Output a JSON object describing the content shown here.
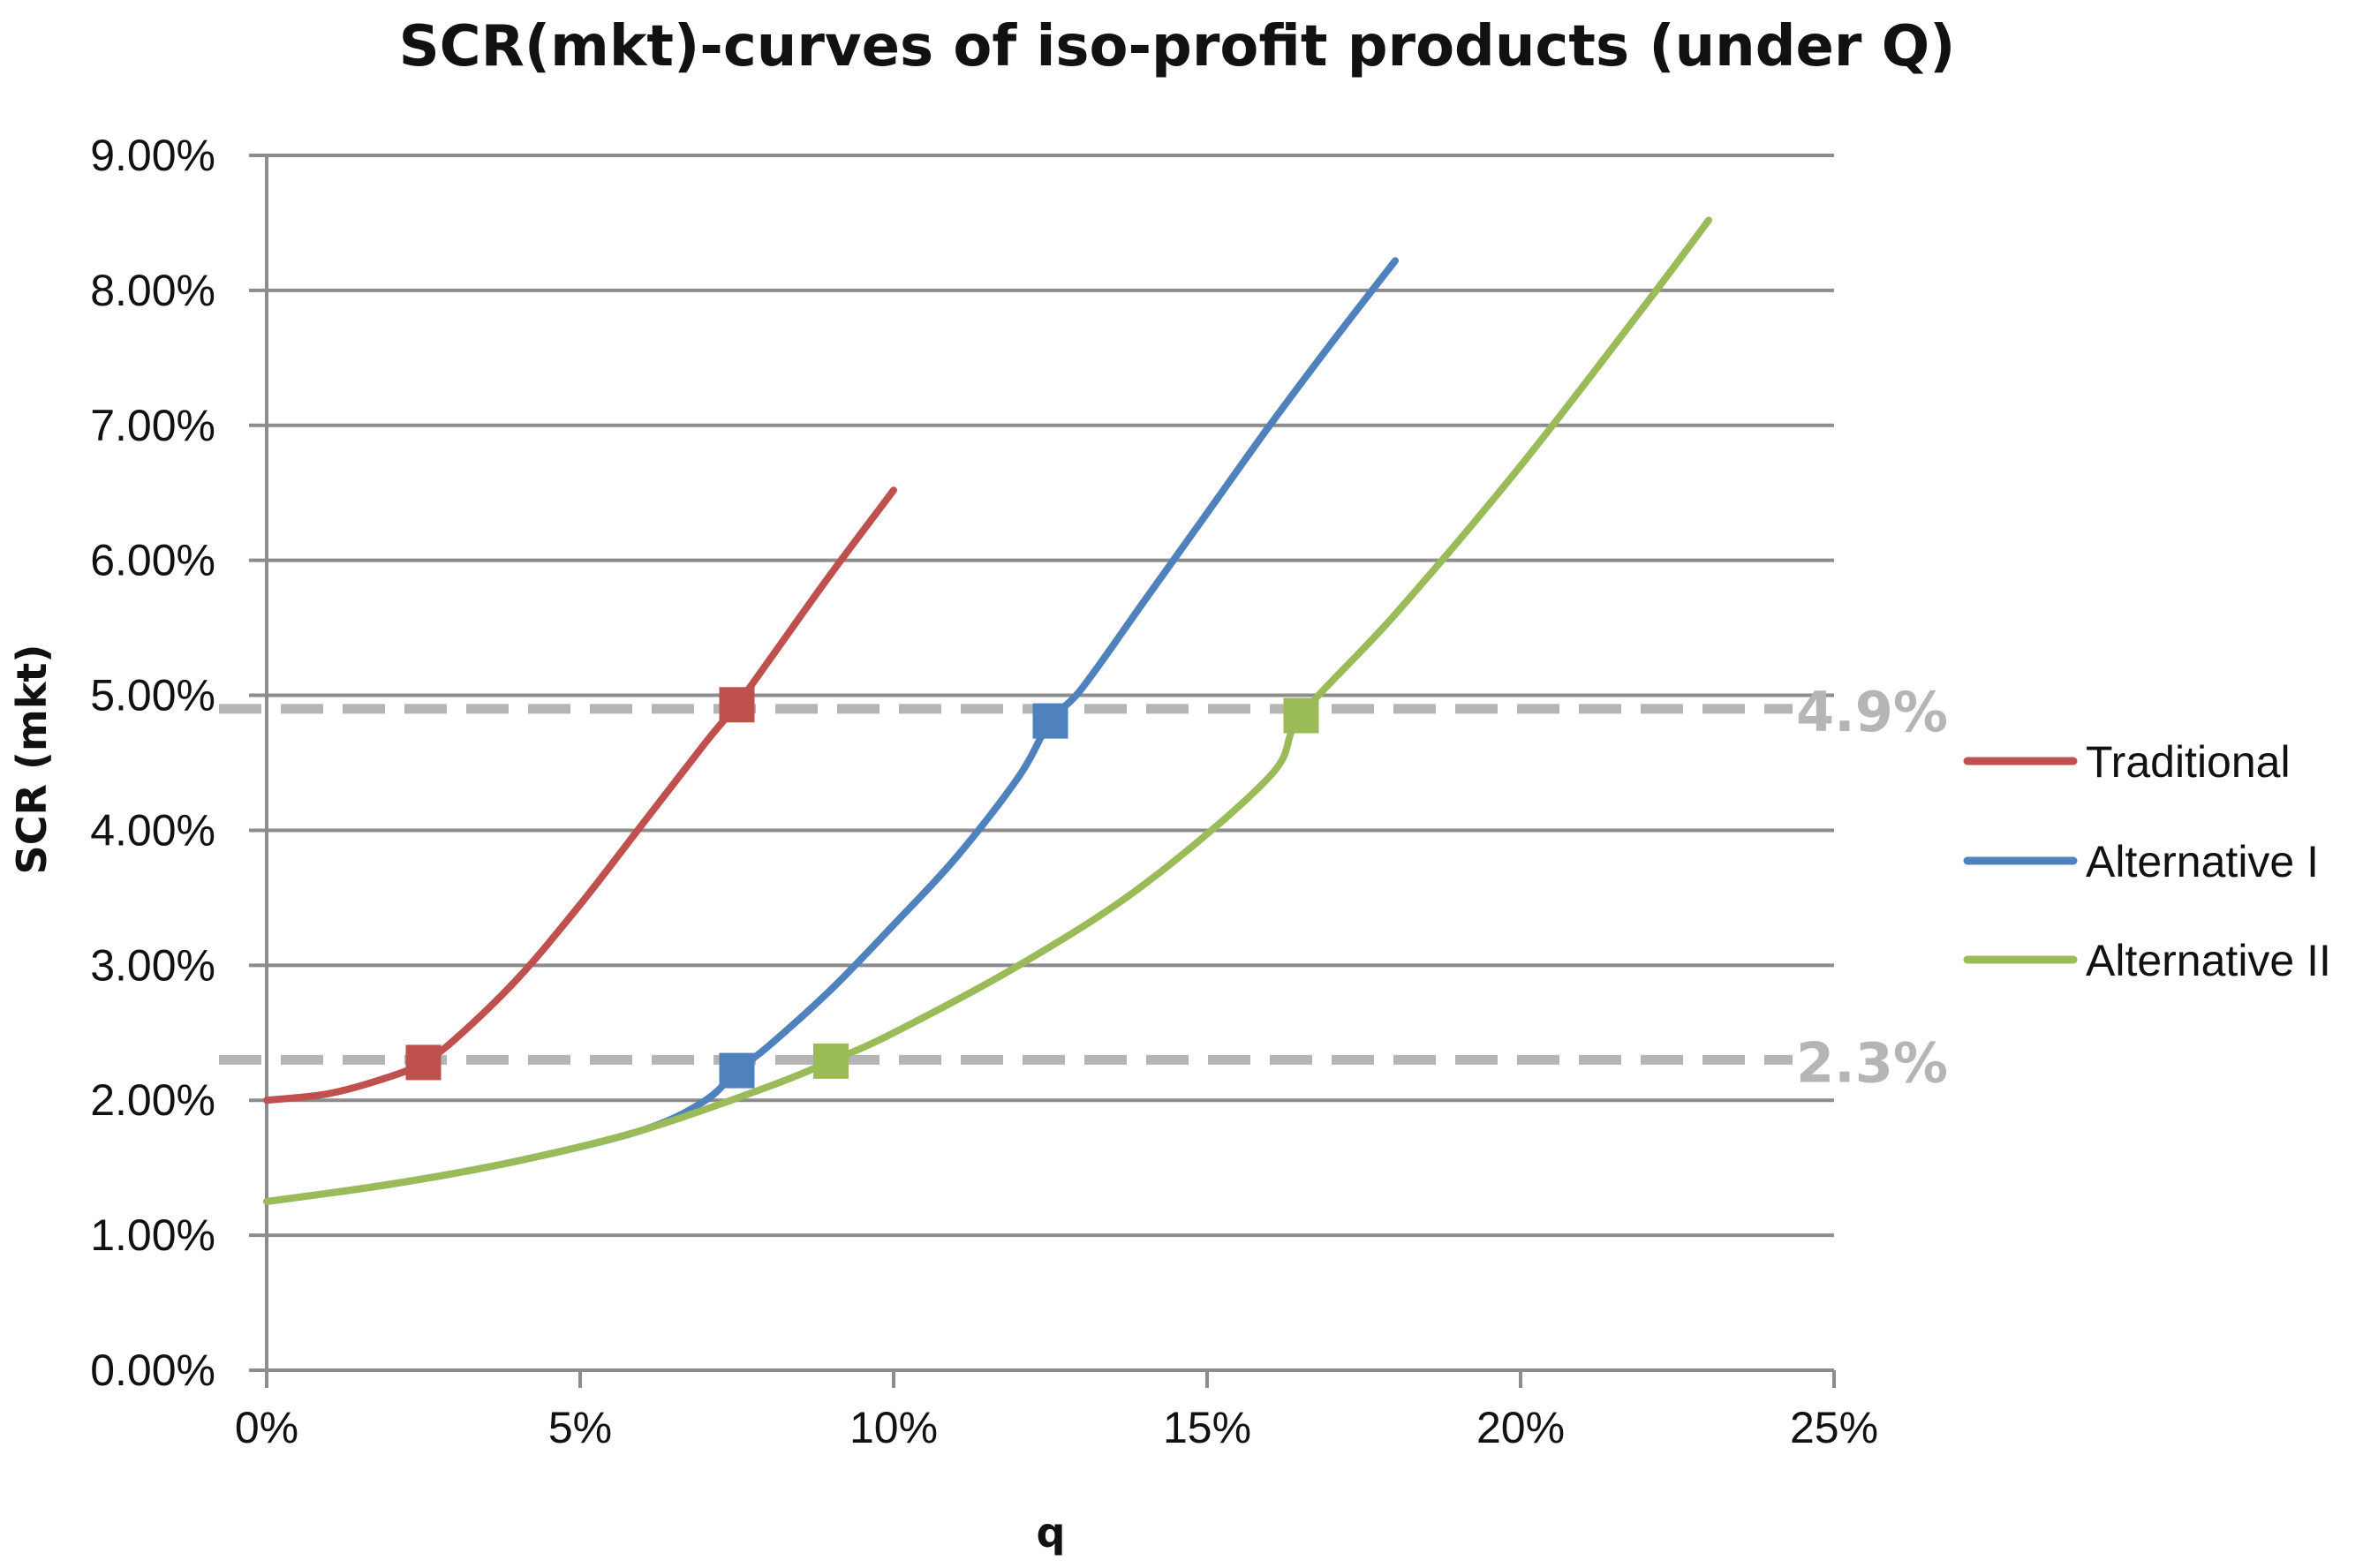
{
  "chart_data": {
    "type": "line",
    "title": "SCR(mkt)-curves of iso-profit products (under Q)",
    "xlabel": "q",
    "ylabel": "SCR (mkt)",
    "xlim": [
      0,
      0.25
    ],
    "ylim": [
      0,
      0.09
    ],
    "x_ticks": [
      0,
      0.05,
      0.1,
      0.15,
      0.2,
      0.25
    ],
    "x_tick_labels": [
      "0%",
      "5%",
      "10%",
      "15%",
      "20%",
      "25%"
    ],
    "y_ticks": [
      0,
      0.01,
      0.02,
      0.03,
      0.04,
      0.05,
      0.06,
      0.07,
      0.08,
      0.09
    ],
    "y_tick_labels": [
      "0.00%",
      "1.00%",
      "2.00%",
      "3.00%",
      "4.00%",
      "5.00%",
      "6.00%",
      "7.00%",
      "8.00%",
      "9.00%"
    ],
    "grid": "horizontal",
    "legend_position": "right",
    "series": [
      {
        "name": "Traditional",
        "color": "#c0504d",
        "x": [
          0,
          0.01,
          0.02,
          0.025,
          0.03,
          0.04,
          0.05,
          0.06,
          0.07,
          0.075,
          0.08,
          0.09,
          0.1
        ],
        "y": [
          0.02,
          0.0205,
          0.0218,
          0.0228,
          0.0245,
          0.029,
          0.0345,
          0.0405,
          0.0465,
          0.0493,
          0.0525,
          0.059,
          0.0652
        ],
        "markers": [
          {
            "x": 0.025,
            "y": 0.0228
          },
          {
            "x": 0.075,
            "y": 0.0493
          }
        ]
      },
      {
        "name": "Alternative I",
        "color": "#4f81bd",
        "x": [
          0,
          0.02,
          0.04,
          0.06,
          0.07,
          0.075,
          0.08,
          0.09,
          0.1,
          0.11,
          0.12,
          0.125,
          0.13,
          0.14,
          0.15,
          0.16,
          0.17,
          0.18
        ],
        "y": [
          0.0125,
          0.0138,
          0.0155,
          0.0178,
          0.02,
          0.0222,
          0.024,
          0.0282,
          0.033,
          0.038,
          0.044,
          0.0481,
          0.0505,
          0.057,
          0.0635,
          0.07,
          0.0762,
          0.0822
        ],
        "markers": [
          {
            "x": 0.075,
            "y": 0.0222
          },
          {
            "x": 0.125,
            "y": 0.0481
          }
        ]
      },
      {
        "name": "Alternative II",
        "color": "#9bbb59",
        "x": [
          0,
          0.02,
          0.04,
          0.06,
          0.08,
          0.09,
          0.1,
          0.12,
          0.14,
          0.16,
          0.165,
          0.18,
          0.2,
          0.22,
          0.23
        ],
        "y": [
          0.0125,
          0.0138,
          0.0155,
          0.0178,
          0.021,
          0.0229,
          0.025,
          0.03,
          0.036,
          0.044,
          0.0485,
          0.056,
          0.067,
          0.079,
          0.0852
        ],
        "markers": [
          {
            "x": 0.09,
            "y": 0.0229
          },
          {
            "x": 0.165,
            "y": 0.0485
          }
        ]
      }
    ],
    "reference_lines": [
      {
        "y": 0.049,
        "label": "4.9%",
        "color": "#b5b5b5"
      },
      {
        "y": 0.023,
        "label": "2.3%",
        "color": "#b5b5b5"
      }
    ]
  }
}
